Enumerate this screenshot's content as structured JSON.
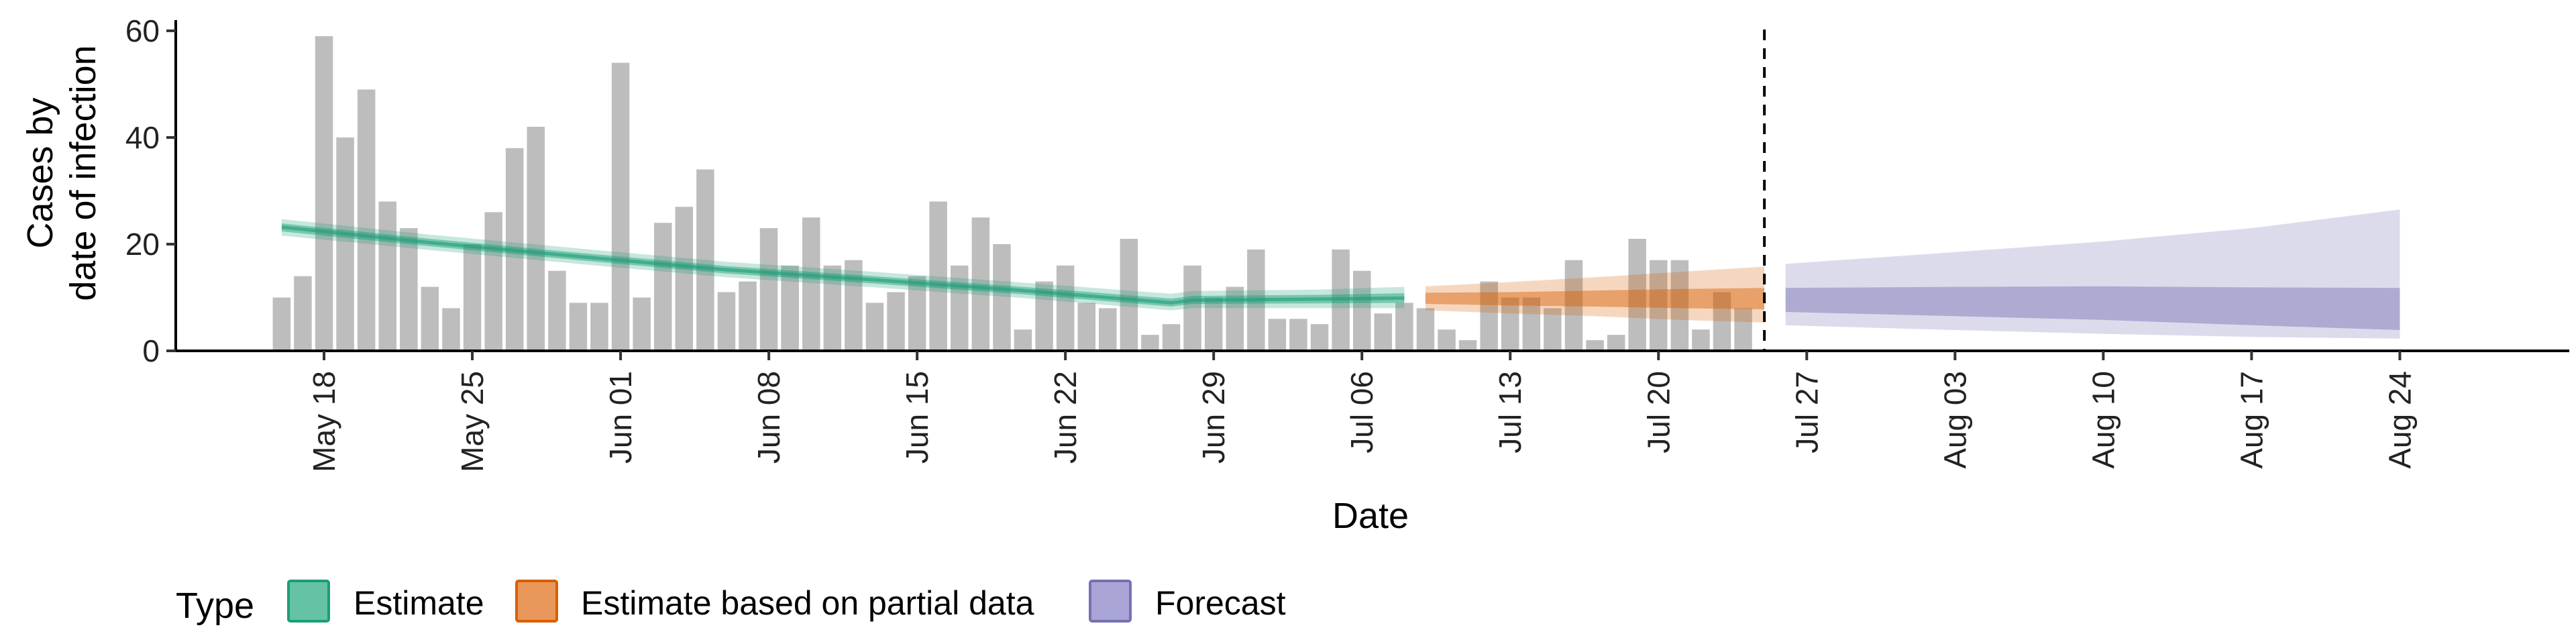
{
  "chart_data": {
    "type": "bar",
    "xlabel": "Date",
    "ylabel_lines": [
      "Cases by",
      "date of infection"
    ],
    "ylim": [
      0,
      62
    ],
    "yticks": [
      0,
      20,
      40,
      60
    ],
    "xlim": [
      "2020-05-11",
      "2020-09-01"
    ],
    "x_tick_labels": [
      {
        "date": "2020-05-18",
        "label": "May 18"
      },
      {
        "date": "2020-05-25",
        "label": "May 25"
      },
      {
        "date": "2020-06-01",
        "label": "Jun 01"
      },
      {
        "date": "2020-06-08",
        "label": "Jun 08"
      },
      {
        "date": "2020-06-15",
        "label": "Jun 15"
      },
      {
        "date": "2020-06-22",
        "label": "Jun 22"
      },
      {
        "date": "2020-06-29",
        "label": "Jun 29"
      },
      {
        "date": "2020-07-06",
        "label": "Jul 06"
      },
      {
        "date": "2020-07-13",
        "label": "Jul 13"
      },
      {
        "date": "2020-07-20",
        "label": "Jul 20"
      },
      {
        "date": "2020-07-27",
        "label": "Jul 27"
      },
      {
        "date": "2020-08-03",
        "label": "Aug 03"
      },
      {
        "date": "2020-08-10",
        "label": "Aug 10"
      },
      {
        "date": "2020-08-17",
        "label": "Aug 17"
      },
      {
        "date": "2020-08-24",
        "label": "Aug 24"
      }
    ],
    "cases_start_date": "2020-05-16",
    "cases": [
      10,
      14,
      59,
      40,
      49,
      28,
      23,
      12,
      8,
      20,
      26,
      38,
      42,
      15,
      9,
      9,
      54,
      10,
      24,
      27,
      34,
      11,
      13,
      23,
      16,
      25,
      16,
      17,
      9,
      11,
      14,
      28,
      16,
      25,
      20,
      4,
      13,
      16,
      9,
      8,
      21,
      3,
      5,
      16,
      10,
      12,
      19,
      6,
      6,
      5,
      19,
      15,
      7,
      9,
      8,
      4,
      2,
      13,
      10,
      10,
      8,
      17,
      2,
      3,
      21,
      17,
      17,
      4,
      11,
      8
    ],
    "forecast_boundary_date": "2020-07-25",
    "series": [
      {
        "name": "Estimate",
        "color": "#1b9e77",
        "points": [
          {
            "date": "2020-05-16",
            "median": 23.2,
            "lower50": 22.4,
            "upper50": 23.9,
            "lower90": 21.6,
            "upper90": 24.7
          },
          {
            "date": "2020-05-23",
            "median": 20.3,
            "lower50": 19.6,
            "upper50": 21.0,
            "lower90": 18.9,
            "upper90": 21.8
          },
          {
            "date": "2020-05-30",
            "median": 17.7,
            "lower50": 17.0,
            "upper50": 18.4,
            "lower90": 16.3,
            "upper90": 19.2
          },
          {
            "date": "2020-06-06",
            "median": 15.2,
            "lower50": 14.5,
            "upper50": 15.9,
            "lower90": 13.8,
            "upper90": 16.7
          },
          {
            "date": "2020-06-13",
            "median": 13.3,
            "lower50": 12.6,
            "upper50": 14.0,
            "lower90": 11.9,
            "upper90": 14.8
          },
          {
            "date": "2020-06-20",
            "median": 11.3,
            "lower50": 10.6,
            "upper50": 12.0,
            "lower90": 9.9,
            "upper90": 12.8
          },
          {
            "date": "2020-06-27",
            "median": 9.0,
            "lower50": 8.3,
            "upper50": 9.8,
            "lower90": 7.6,
            "upper90": 10.7
          },
          {
            "date": "2020-06-28",
            "median": 9.5,
            "lower50": 8.8,
            "upper50": 10.3,
            "lower90": 8.0,
            "upper90": 11.2
          },
          {
            "date": "2020-07-04",
            "median": 9.7,
            "lower50": 8.9,
            "upper50": 10.5,
            "lower90": 8.0,
            "upper90": 11.5
          },
          {
            "date": "2020-07-08",
            "median": 9.9,
            "lower50": 9.0,
            "upper50": 10.8,
            "lower90": 8.0,
            "upper90": 12.0
          }
        ]
      },
      {
        "name": "Estimate based on partial data",
        "color": "#d95f02",
        "points": [
          {
            "date": "2020-07-09",
            "median": 9.9,
            "lower50": 8.8,
            "upper50": 10.9,
            "lower90": 7.6,
            "upper90": 12.1
          },
          {
            "date": "2020-07-13",
            "median": 9.8,
            "lower50": 8.5,
            "upper50": 11.0,
            "lower90": 7.0,
            "upper90": 12.9
          },
          {
            "date": "2020-07-17",
            "median": 9.8,
            "lower50": 8.3,
            "upper50": 11.3,
            "lower90": 6.5,
            "upper90": 13.8
          },
          {
            "date": "2020-07-21",
            "median": 9.8,
            "lower50": 8.0,
            "upper50": 11.6,
            "lower90": 5.8,
            "upper90": 14.8
          },
          {
            "date": "2020-07-25",
            "median": 9.8,
            "lower50": 7.8,
            "upper50": 11.8,
            "lower90": 5.3,
            "upper90": 15.8
          }
        ]
      },
      {
        "name": "Forecast",
        "color": "#7570b3",
        "points": [
          {
            "date": "2020-07-26",
            "median": 9.5,
            "lower50": 7.3,
            "upper50": 11.8,
            "lower90": 4.8,
            "upper90": 16.3
          },
          {
            "date": "2020-08-03",
            "median": 9.0,
            "lower50": 6.5,
            "upper50": 12.0,
            "lower90": 3.9,
            "upper90": 18.5
          },
          {
            "date": "2020-08-10",
            "median": 8.8,
            "lower50": 5.8,
            "upper50": 12.1,
            "lower90": 3.2,
            "upper90": 20.5
          },
          {
            "date": "2020-08-17",
            "median": 8.3,
            "lower50": 4.8,
            "upper50": 11.9,
            "lower90": 2.6,
            "upper90": 23.0
          },
          {
            "date": "2020-08-24",
            "median": 7.9,
            "lower50": 3.9,
            "upper50": 11.8,
            "lower90": 2.3,
            "upper90": 26.5
          }
        ]
      }
    ],
    "legend": {
      "title": "Type",
      "position": "bottom-left",
      "items": [
        {
          "label": "Estimate",
          "fill": "#66c2a5",
          "stroke": "#1b9e77"
        },
        {
          "label": "Estimate based on partial data",
          "fill": "#e9975a",
          "stroke": "#d95f02"
        },
        {
          "label": "Forecast",
          "fill": "#a9a5d6",
          "stroke": "#7570b3"
        }
      ]
    },
    "grid": false,
    "bar_color": "#bdbdbd"
  }
}
